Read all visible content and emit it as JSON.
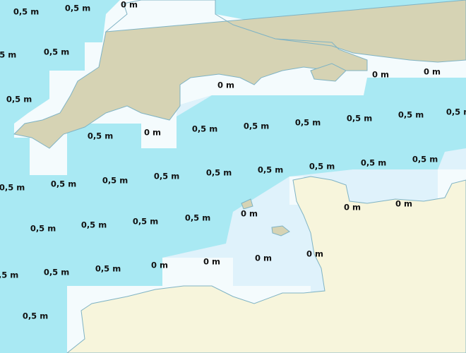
{
  "labels": [
    "0,5 m",
    "0,5 m",
    "0 m",
    "0,5 m",
    "0,5 m",
    "0,5 m",
    "0 m",
    "0 m",
    "0 m",
    "0,5 m",
    "0 m",
    "0,5 m",
    "0,5 m",
    "0,5 m",
    "0,5 m",
    "0,5 m",
    "0,5 m",
    "0,5 m",
    "0,5 m",
    "0,5 m",
    "0,5 m",
    "0,5 m",
    "0,5 m",
    "0,5 m",
    "0,5 m",
    "0,5 m",
    "0 m",
    "0 m",
    "0 m",
    "0,5 m",
    "0,5 m",
    "0,5 m",
    "0,5 m",
    "0 m",
    "0 m",
    "0 m",
    "0 m",
    "0,5 m",
    "0,5 m",
    "0,5 m",
    "0,5 m"
  ]
}
